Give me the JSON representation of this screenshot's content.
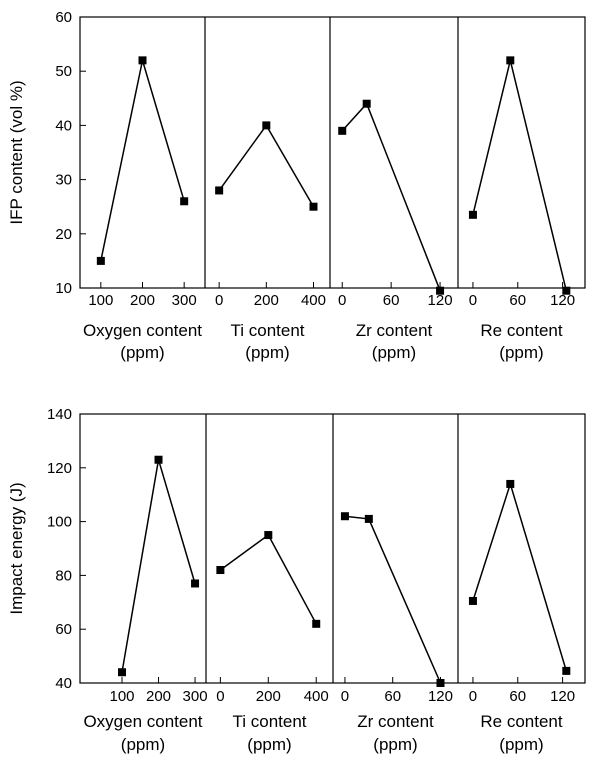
{
  "chart_data": [
    {
      "type": "line",
      "ylabel": "IFP content (vol %)",
      "ylim": [
        10,
        60
      ],
      "yticks": [
        "60",
        "50",
        "40",
        "30",
        "20",
        "10"
      ],
      "panels": [
        {
          "xlabel": "Oxygen content",
          "unit": "(ppm)",
          "xlim": [
            50,
            350
          ],
          "xticks": [
            100,
            200,
            300
          ],
          "xtick_labels": [
            "100",
            "200",
            "300"
          ],
          "x": [
            100,
            200,
            300
          ],
          "y": [
            15,
            52,
            26
          ]
        },
        {
          "xlabel": "Ti content",
          "unit": "(ppm)",
          "xlim": [
            -60,
            470
          ],
          "xticks": [
            0,
            200,
            400
          ],
          "xtick_labels": [
            "0",
            "200",
            "400"
          ],
          "x": [
            0,
            200,
            400
          ],
          "y": [
            28,
            40,
            25
          ]
        },
        {
          "xlabel": "Zr content",
          "unit": "(ppm)",
          "xlim": [
            -15,
            142
          ],
          "xticks": [
            0,
            60,
            120
          ],
          "xtick_labels": [
            "0",
            "60",
            "120"
          ],
          "x": [
            0,
            30,
            120
          ],
          "y": [
            39,
            44,
            9.5
          ]
        },
        {
          "xlabel": "Re content",
          "unit": "(ppm)",
          "xlim": [
            -20,
            150
          ],
          "xticks": [
            0,
            60,
            120
          ],
          "xtick_labels": [
            "0",
            "60",
            "120"
          ],
          "x": [
            0,
            50,
            125
          ],
          "y": [
            23.5,
            52,
            9.5
          ]
        }
      ]
    },
    {
      "type": "line",
      "ylabel": "Impact energy (J)",
      "ylim": [
        40,
        140
      ],
      "yticks": [
        "140",
        "120",
        "100",
        "80",
        "60",
        "40"
      ],
      "panels": [
        {
          "xlabel": "Oxygen content",
          "unit": "(ppm)",
          "xlim": [
            -15,
            330
          ],
          "xticks": [
            100,
            200,
            300
          ],
          "xtick_labels": [
            "100",
            "200",
            "300"
          ],
          "x": [
            100,
            200,
            300
          ],
          "y": [
            44,
            123,
            77
          ]
        },
        {
          "xlabel": "Ti content",
          "unit": "(ppm)",
          "xlim": [
            -60,
            470
          ],
          "xticks": [
            0,
            200,
            400
          ],
          "xtick_labels": [
            "0",
            "200",
            "400"
          ],
          "x": [
            0,
            200,
            400
          ],
          "y": [
            82,
            95,
            62
          ]
        },
        {
          "xlabel": "Zr content",
          "unit": "(ppm)",
          "xlim": [
            -15,
            142
          ],
          "xticks": [
            0,
            60,
            120
          ],
          "xtick_labels": [
            "0",
            "60",
            "120"
          ],
          "x": [
            0,
            30,
            120
          ],
          "y": [
            102,
            101,
            40
          ]
        },
        {
          "xlabel": "Re content",
          "unit": "(ppm)",
          "xlim": [
            -20,
            150
          ],
          "xticks": [
            0,
            60,
            120
          ],
          "xtick_labels": [
            "0",
            "60",
            "120"
          ],
          "x": [
            0,
            50,
            125
          ],
          "y": [
            70.5,
            114,
            44.5
          ]
        }
      ]
    }
  ]
}
